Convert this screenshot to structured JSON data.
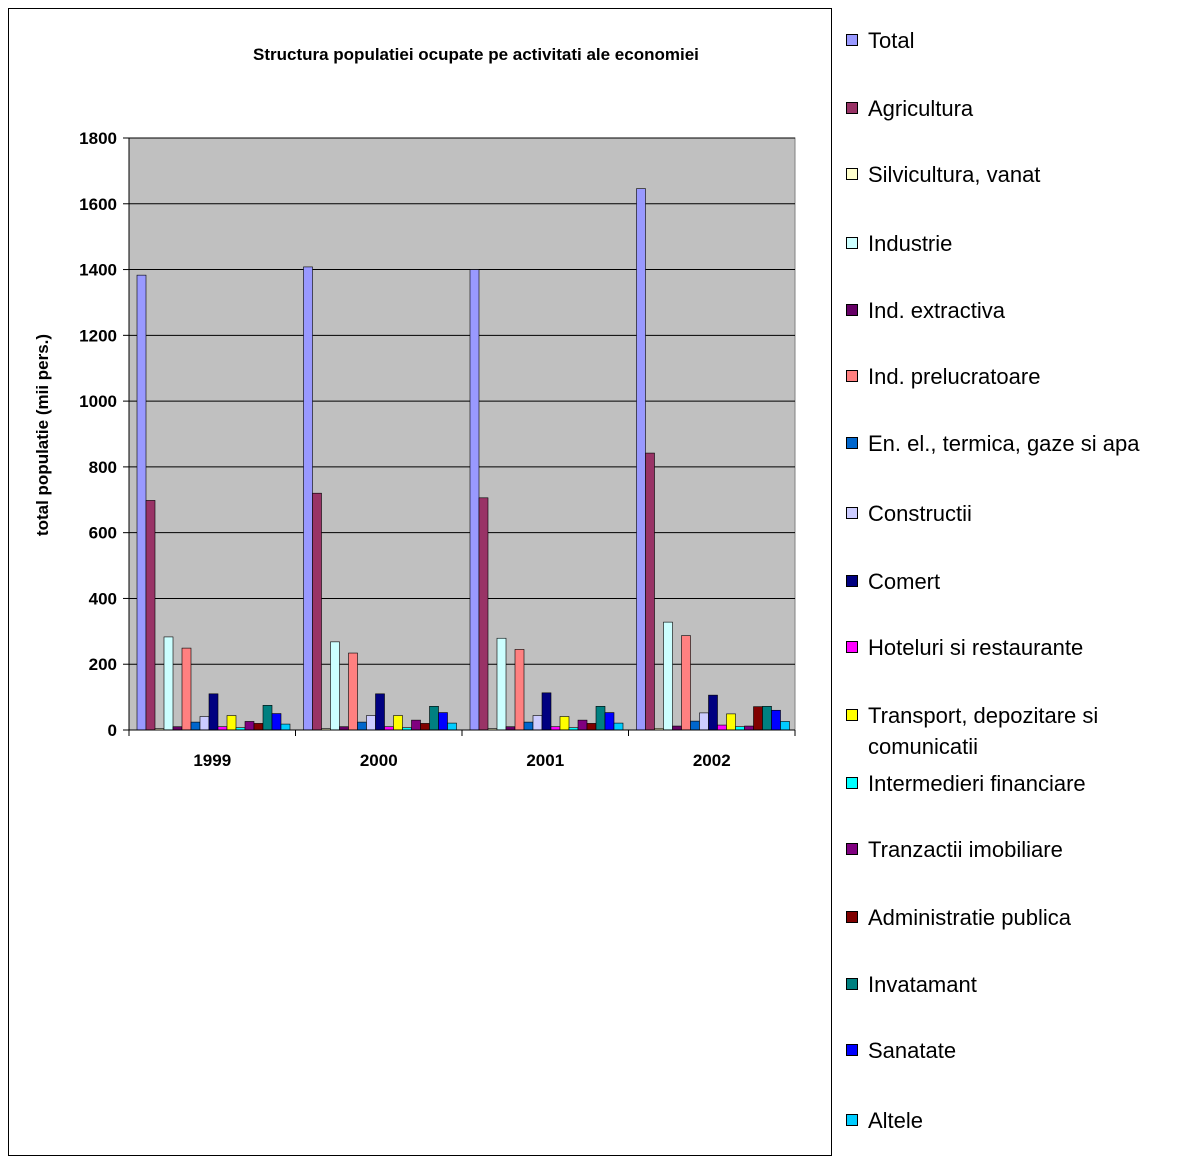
{
  "chart_data": {
    "type": "bar",
    "title": "Structura populatiei ocupate pe activitati ale economiei",
    "ylabel": "total populatie (mii pers.)",
    "xlabel": "",
    "ylim": [
      0,
      1800
    ],
    "yticks": [
      "0",
      "200",
      "400",
      "600",
      "800",
      "1000",
      "1200",
      "1400",
      "1600",
      "1800"
    ],
    "grid": true,
    "legend_position": "right",
    "categories": [
      "1999",
      "2000",
      "2001",
      "2002"
    ],
    "series": [
      {
        "name": "Total",
        "color": "#9999FF",
        "values": [
          1383,
          1408,
          1400,
          1646
        ]
      },
      {
        "name": "Agricultura",
        "color": "#993366",
        "values": [
          698,
          720,
          706,
          842
        ]
      },
      {
        "name": "Silvicultura, vanat",
        "color": "#FFFFCC",
        "values": [
          4,
          4,
          4,
          5
        ]
      },
      {
        "name": "Industrie",
        "color": "#CCFFFF",
        "values": [
          283,
          268,
          279,
          328
        ]
      },
      {
        "name": "Ind. extractiva",
        "color": "#660066",
        "values": [
          10,
          10,
          10,
          12
        ]
      },
      {
        "name": "Ind. prelucratoare",
        "color": "#FF8080",
        "values": [
          249,
          234,
          245,
          287
        ]
      },
      {
        "name": "En. el., termica, gaze si apa",
        "color": "#0066CC",
        "values": [
          24,
          24,
          24,
          27
        ]
      },
      {
        "name": "Constructii",
        "color": "#CCCCFF",
        "values": [
          41,
          44,
          44,
          52
        ]
      },
      {
        "name": "Comert",
        "color": "#000080",
        "values": [
          110,
          110,
          113,
          106
        ]
      },
      {
        "name": "Hoteluri si restaurante",
        "color": "#FF00FF",
        "values": [
          10,
          10,
          10,
          15
        ]
      },
      {
        "name": "Transport, depozitare si comunicatii",
        "color": "#FFFF00",
        "values": [
          44,
          44,
          41,
          49
        ]
      },
      {
        "name": "Intermedieri financiare",
        "color": "#00FFFF",
        "values": [
          7,
          7,
          7,
          10
        ]
      },
      {
        "name": "Tranzactii imobiliare",
        "color": "#800080",
        "values": [
          26,
          30,
          30,
          12
        ]
      },
      {
        "name": "Administratie publica",
        "color": "#800000",
        "values": [
          20,
          20,
          20,
          71
        ]
      },
      {
        "name": "Invatamant",
        "color": "#008080",
        "values": [
          75,
          72,
          72,
          72
        ]
      },
      {
        "name": "Sanatate",
        "color": "#0000FF",
        "values": [
          50,
          53,
          53,
          60
        ]
      },
      {
        "name": "Altele",
        "color": "#00CCFF",
        "values": [
          18,
          21,
          21,
          26
        ]
      }
    ]
  }
}
